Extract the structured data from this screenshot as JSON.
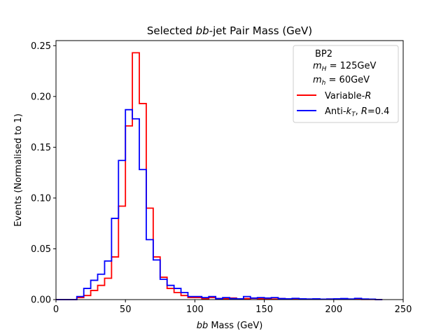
{
  "chart_data": {
    "type": "histogram-step",
    "title_prefix": "Selected ",
    "title_italic": "bb",
    "title_suffix": "-jet Pair Mass (GeV)",
    "xlabel_italic": "bb",
    "xlabel_suffix": " Mass (GeV)",
    "ylabel": "Events (Normalised to 1)",
    "xlim": [
      0,
      250
    ],
    "ylim": [
      0,
      0.255
    ],
    "xticks": [
      0,
      50,
      100,
      150,
      200,
      250
    ],
    "yticks": [
      0.0,
      0.05,
      0.1,
      0.15,
      0.2,
      0.25
    ],
    "xtick_labels": [
      "0",
      "50",
      "100",
      "150",
      "200",
      "250"
    ],
    "ytick_labels": [
      "0.00",
      "0.05",
      "0.10",
      "0.15",
      "0.20",
      "0.25"
    ],
    "bin_edges": [
      0,
      5,
      10,
      15,
      20,
      25,
      30,
      35,
      40,
      45,
      50,
      55,
      60,
      65,
      70,
      75,
      80,
      85,
      90,
      95,
      100,
      105,
      110,
      115,
      120,
      125,
      130,
      135,
      140,
      145,
      150,
      155,
      160,
      165,
      170,
      175,
      180,
      185,
      190,
      195,
      200,
      205,
      210,
      215,
      220,
      225,
      230,
      235
    ],
    "legend": {
      "header": "BP2",
      "mH_sym": "m",
      "mH_sub": "H",
      "mH_val": " = 125GeV",
      "mh_sym": "m",
      "mh_sub": "h",
      "mh_val": " = 60GeV"
    },
    "series": [
      {
        "name": "Variable-R",
        "name_prefix": "Variable-",
        "name_italic": "R",
        "color": "#ff0000",
        "values": [
          0.0,
          0.0,
          0.0,
          0.002,
          0.004,
          0.009,
          0.014,
          0.021,
          0.042,
          0.092,
          0.171,
          0.243,
          0.193,
          0.09,
          0.042,
          0.022,
          0.011,
          0.007,
          0.004,
          0.002,
          0.002,
          0.001,
          0.002,
          0.001,
          0.001,
          0.0015,
          0.0008,
          0.001,
          0.0012,
          0.001,
          0.0008,
          0.0005,
          0.001,
          0.0008,
          0.0004,
          0.0006,
          0.0003,
          0.0004,
          0.0003,
          0.0005,
          0.0004,
          0.0006,
          0.0003,
          0.0004,
          0.0002,
          0.0002,
          0.0
        ]
      },
      {
        "name": "Anti-kT, R=0.4",
        "name_prefix": "Anti-",
        "name_k": "k",
        "name_k_sub": "T",
        "name_comma": ", ",
        "name_R": "R",
        "name_suffix": "=0.4",
        "color": "#0000ff",
        "values": [
          0.0,
          0.0,
          0.0,
          0.003,
          0.011,
          0.019,
          0.025,
          0.038,
          0.08,
          0.137,
          0.187,
          0.178,
          0.128,
          0.059,
          0.039,
          0.02,
          0.014,
          0.011,
          0.007,
          0.003,
          0.003,
          0.002,
          0.003,
          0.001,
          0.002,
          0.001,
          0.0008,
          0.003,
          0.0015,
          0.002,
          0.0015,
          0.002,
          0.001,
          0.0008,
          0.0012,
          0.0008,
          0.0006,
          0.0008,
          0.0004,
          0.0006,
          0.0008,
          0.001,
          0.0006,
          0.0012,
          0.0006,
          0.0004,
          0.0
        ]
      }
    ]
  }
}
